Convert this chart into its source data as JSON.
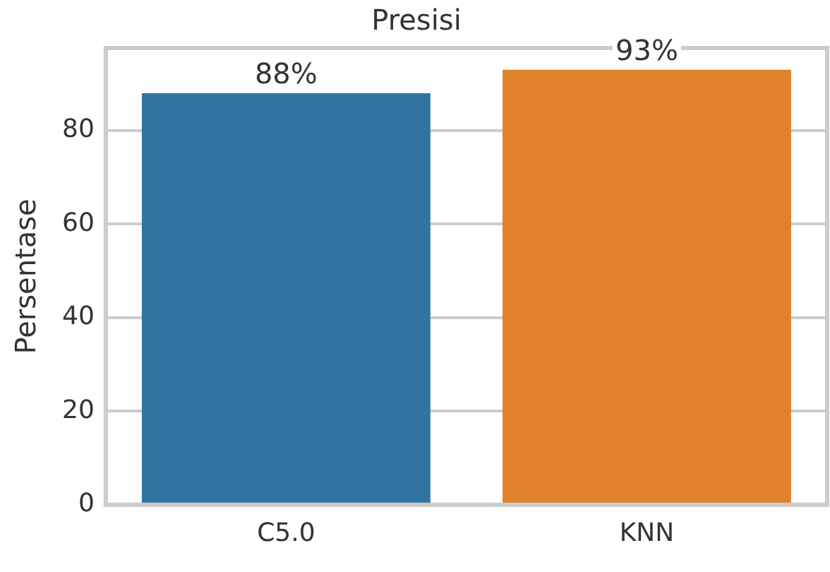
{
  "chart_data": {
    "type": "bar",
    "title": "Presisi",
    "ylabel": "Persentase",
    "categories": [
      "C5.0",
      "KNN"
    ],
    "values": [
      88,
      93
    ],
    "colors": [
      "#3274a1",
      "#e1812c"
    ],
    "value_labels": [
      "88%",
      "93%"
    ],
    "ylim": [
      0,
      97.65
    ],
    "yticks": [
      0,
      20,
      40,
      60,
      80
    ],
    "grid": "y",
    "legend": false
  }
}
